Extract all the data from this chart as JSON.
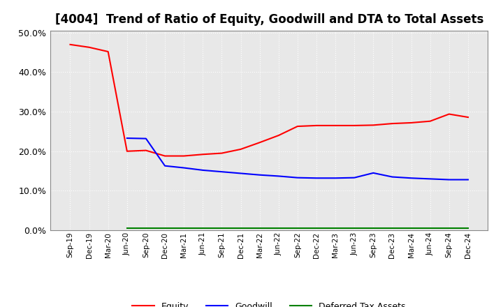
{
  "title": "[4004]  Trend of Ratio of Equity, Goodwill and DTA to Total Assets",
  "x_labels": [
    "Sep-19",
    "Dec-19",
    "Mar-20",
    "Jun-20",
    "Sep-20",
    "Dec-20",
    "Mar-21",
    "Jun-21",
    "Sep-21",
    "Dec-21",
    "Mar-22",
    "Jun-22",
    "Sep-22",
    "Dec-22",
    "Mar-23",
    "Jun-23",
    "Sep-23",
    "Dec-23",
    "Mar-24",
    "Jun-24",
    "Sep-24",
    "Dec-24"
  ],
  "equity": [
    0.47,
    0.463,
    0.452,
    0.2,
    0.202,
    0.188,
    0.188,
    0.192,
    0.195,
    0.205,
    0.222,
    0.24,
    0.263,
    0.265,
    0.265,
    0.265,
    0.266,
    0.27,
    0.272,
    0.276,
    0.294,
    0.286
  ],
  "goodwill": [
    null,
    null,
    null,
    0.233,
    0.232,
    0.163,
    0.158,
    0.152,
    0.148,
    0.144,
    0.14,
    0.137,
    0.133,
    0.132,
    0.132,
    0.133,
    0.145,
    0.135,
    0.132,
    0.13,
    0.128,
    0.128
  ],
  "dta": [
    null,
    null,
    null,
    0.005,
    0.005,
    0.005,
    0.005,
    0.005,
    0.005,
    0.005,
    0.005,
    0.005,
    0.005,
    0.005,
    0.005,
    0.005,
    0.005,
    0.005,
    0.005,
    0.005,
    0.005,
    0.005
  ],
  "equity_color": "#FF0000",
  "goodwill_color": "#0000FF",
  "dta_color": "#008000",
  "ylim": [
    0.0,
    0.505
  ],
  "yticks": [
    0.0,
    0.1,
    0.2,
    0.3,
    0.4,
    0.5
  ],
  "plot_bg_color": "#E8E8E8",
  "fig_bg_color": "#FFFFFF",
  "grid_color": "#FFFFFF",
  "title_fontsize": 12,
  "legend_labels": [
    "Equity",
    "Goodwill",
    "Deferred Tax Assets"
  ]
}
